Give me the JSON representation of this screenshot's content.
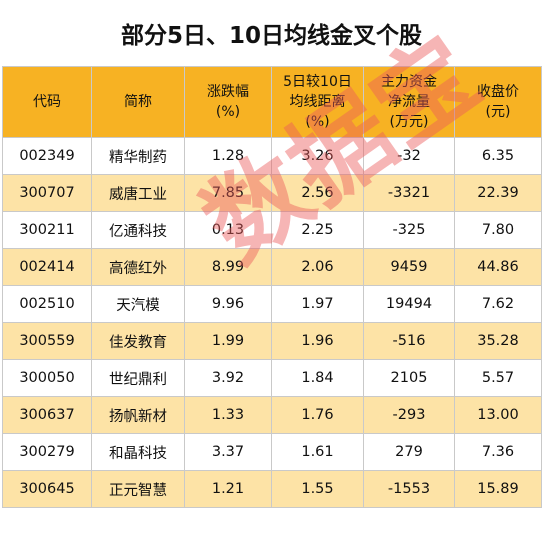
{
  "title": "部分5日、10日均线金叉个股",
  "headers": [
    {
      "line1": "代码",
      "line2": ""
    },
    {
      "line1": "简称",
      "line2": ""
    },
    {
      "line1": "涨跌幅",
      "line2": "(%)"
    },
    {
      "line1": "5日较10日",
      "line2": "均线距离",
      "line3": "(%)"
    },
    {
      "line1": "主力资金",
      "line2": "净流量",
      "line3": "(万元)"
    },
    {
      "line1": "收盘价",
      "line2": "(元)"
    }
  ],
  "rows": [
    {
      "code": "002349",
      "name": "精华制药",
      "change": "1.28",
      "ma_gap": "3.26",
      "flow": "-32",
      "close": "6.35"
    },
    {
      "code": "300707",
      "name": "威唐工业",
      "change": "7.85",
      "ma_gap": "2.56",
      "flow": "-3321",
      "close": "22.39"
    },
    {
      "code": "300211",
      "name": "亿通科技",
      "change": "0.13",
      "ma_gap": "2.25",
      "flow": "-325",
      "close": "7.80"
    },
    {
      "code": "002414",
      "name": "高德红外",
      "change": "8.99",
      "ma_gap": "2.06",
      "flow": "9459",
      "close": "44.86"
    },
    {
      "code": "002510",
      "name": "天汽模",
      "change": "9.96",
      "ma_gap": "1.97",
      "flow": "19494",
      "close": "7.62"
    },
    {
      "code": "300559",
      "name": "佳发教育",
      "change": "1.99",
      "ma_gap": "1.96",
      "flow": "-516",
      "close": "35.28"
    },
    {
      "code": "300050",
      "name": "世纪鼎利",
      "change": "3.92",
      "ma_gap": "1.84",
      "flow": "2105",
      "close": "5.57"
    },
    {
      "code": "300637",
      "name": "扬帆新材",
      "change": "1.33",
      "ma_gap": "1.76",
      "flow": "-293",
      "close": "13.00"
    },
    {
      "code": "300279",
      "name": "和晶科技",
      "change": "3.37",
      "ma_gap": "1.61",
      "flow": "279",
      "close": "7.36"
    },
    {
      "code": "300645",
      "name": "正元智慧",
      "change": "1.21",
      "ma_gap": "1.55",
      "flow": "-1553",
      "close": "15.89"
    }
  ],
  "watermark": "数据宝",
  "colors": {
    "header": "#f7b223",
    "stripe": "#fde3a6",
    "watermark": "#eb5a5a"
  }
}
